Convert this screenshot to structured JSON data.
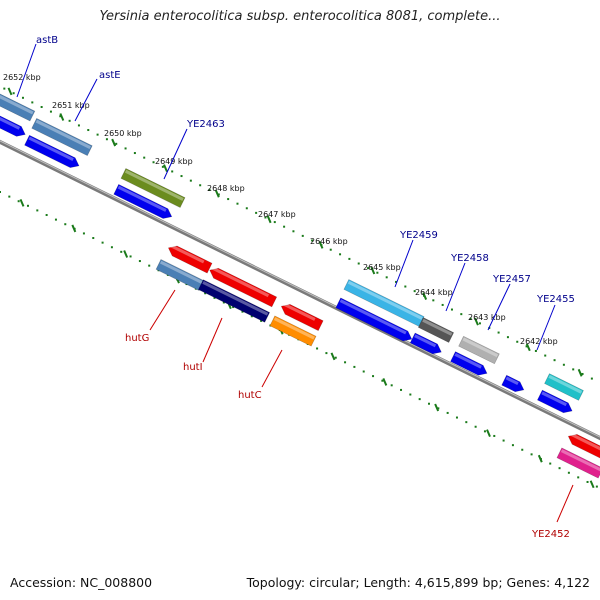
{
  "title": "Yersinia enterocolitica subsp. enterocolitica 8081, complete...",
  "footer": {
    "accession": "Accession: NC_008800",
    "summary": "Topology: circular; Length: 4,615,899 bp; Genes: 4,122"
  },
  "scale_labels": [
    "2652 kbp",
    "2651 kbp",
    "2650 kbp",
    "2649 kbp",
    "2648 kbp",
    "2647 kbp",
    "2646 kbp",
    "2645 kbp",
    "2644 kbp",
    "2643 kbp",
    "2642 kbp"
  ],
  "forward_gene_labels": [
    "astB",
    "astE",
    "YE2463",
    "YE2459",
    "YE2458",
    "YE2457",
    "YE2455"
  ],
  "reverse_gene_labels": [
    "hutG",
    "hutI",
    "hutC",
    "YE2452"
  ],
  "colors": {
    "backbone": "#7a7a7a",
    "tick": "#1a7a1a",
    "cds": "#0000ee",
    "gene_blue": "#4a7fb5",
    "gene_olive": "#6b8c1e",
    "gene_cyan": "#3ab4e6",
    "gene_darkgray": "#555555",
    "gene_lightgray": "#b0b0b0",
    "gene_teal": "#20c0c8",
    "gene_red": "#ee0000",
    "gene_navy": "#000070",
    "gene_orange": "#ff8c00",
    "gene_magenta": "#e0208c"
  }
}
